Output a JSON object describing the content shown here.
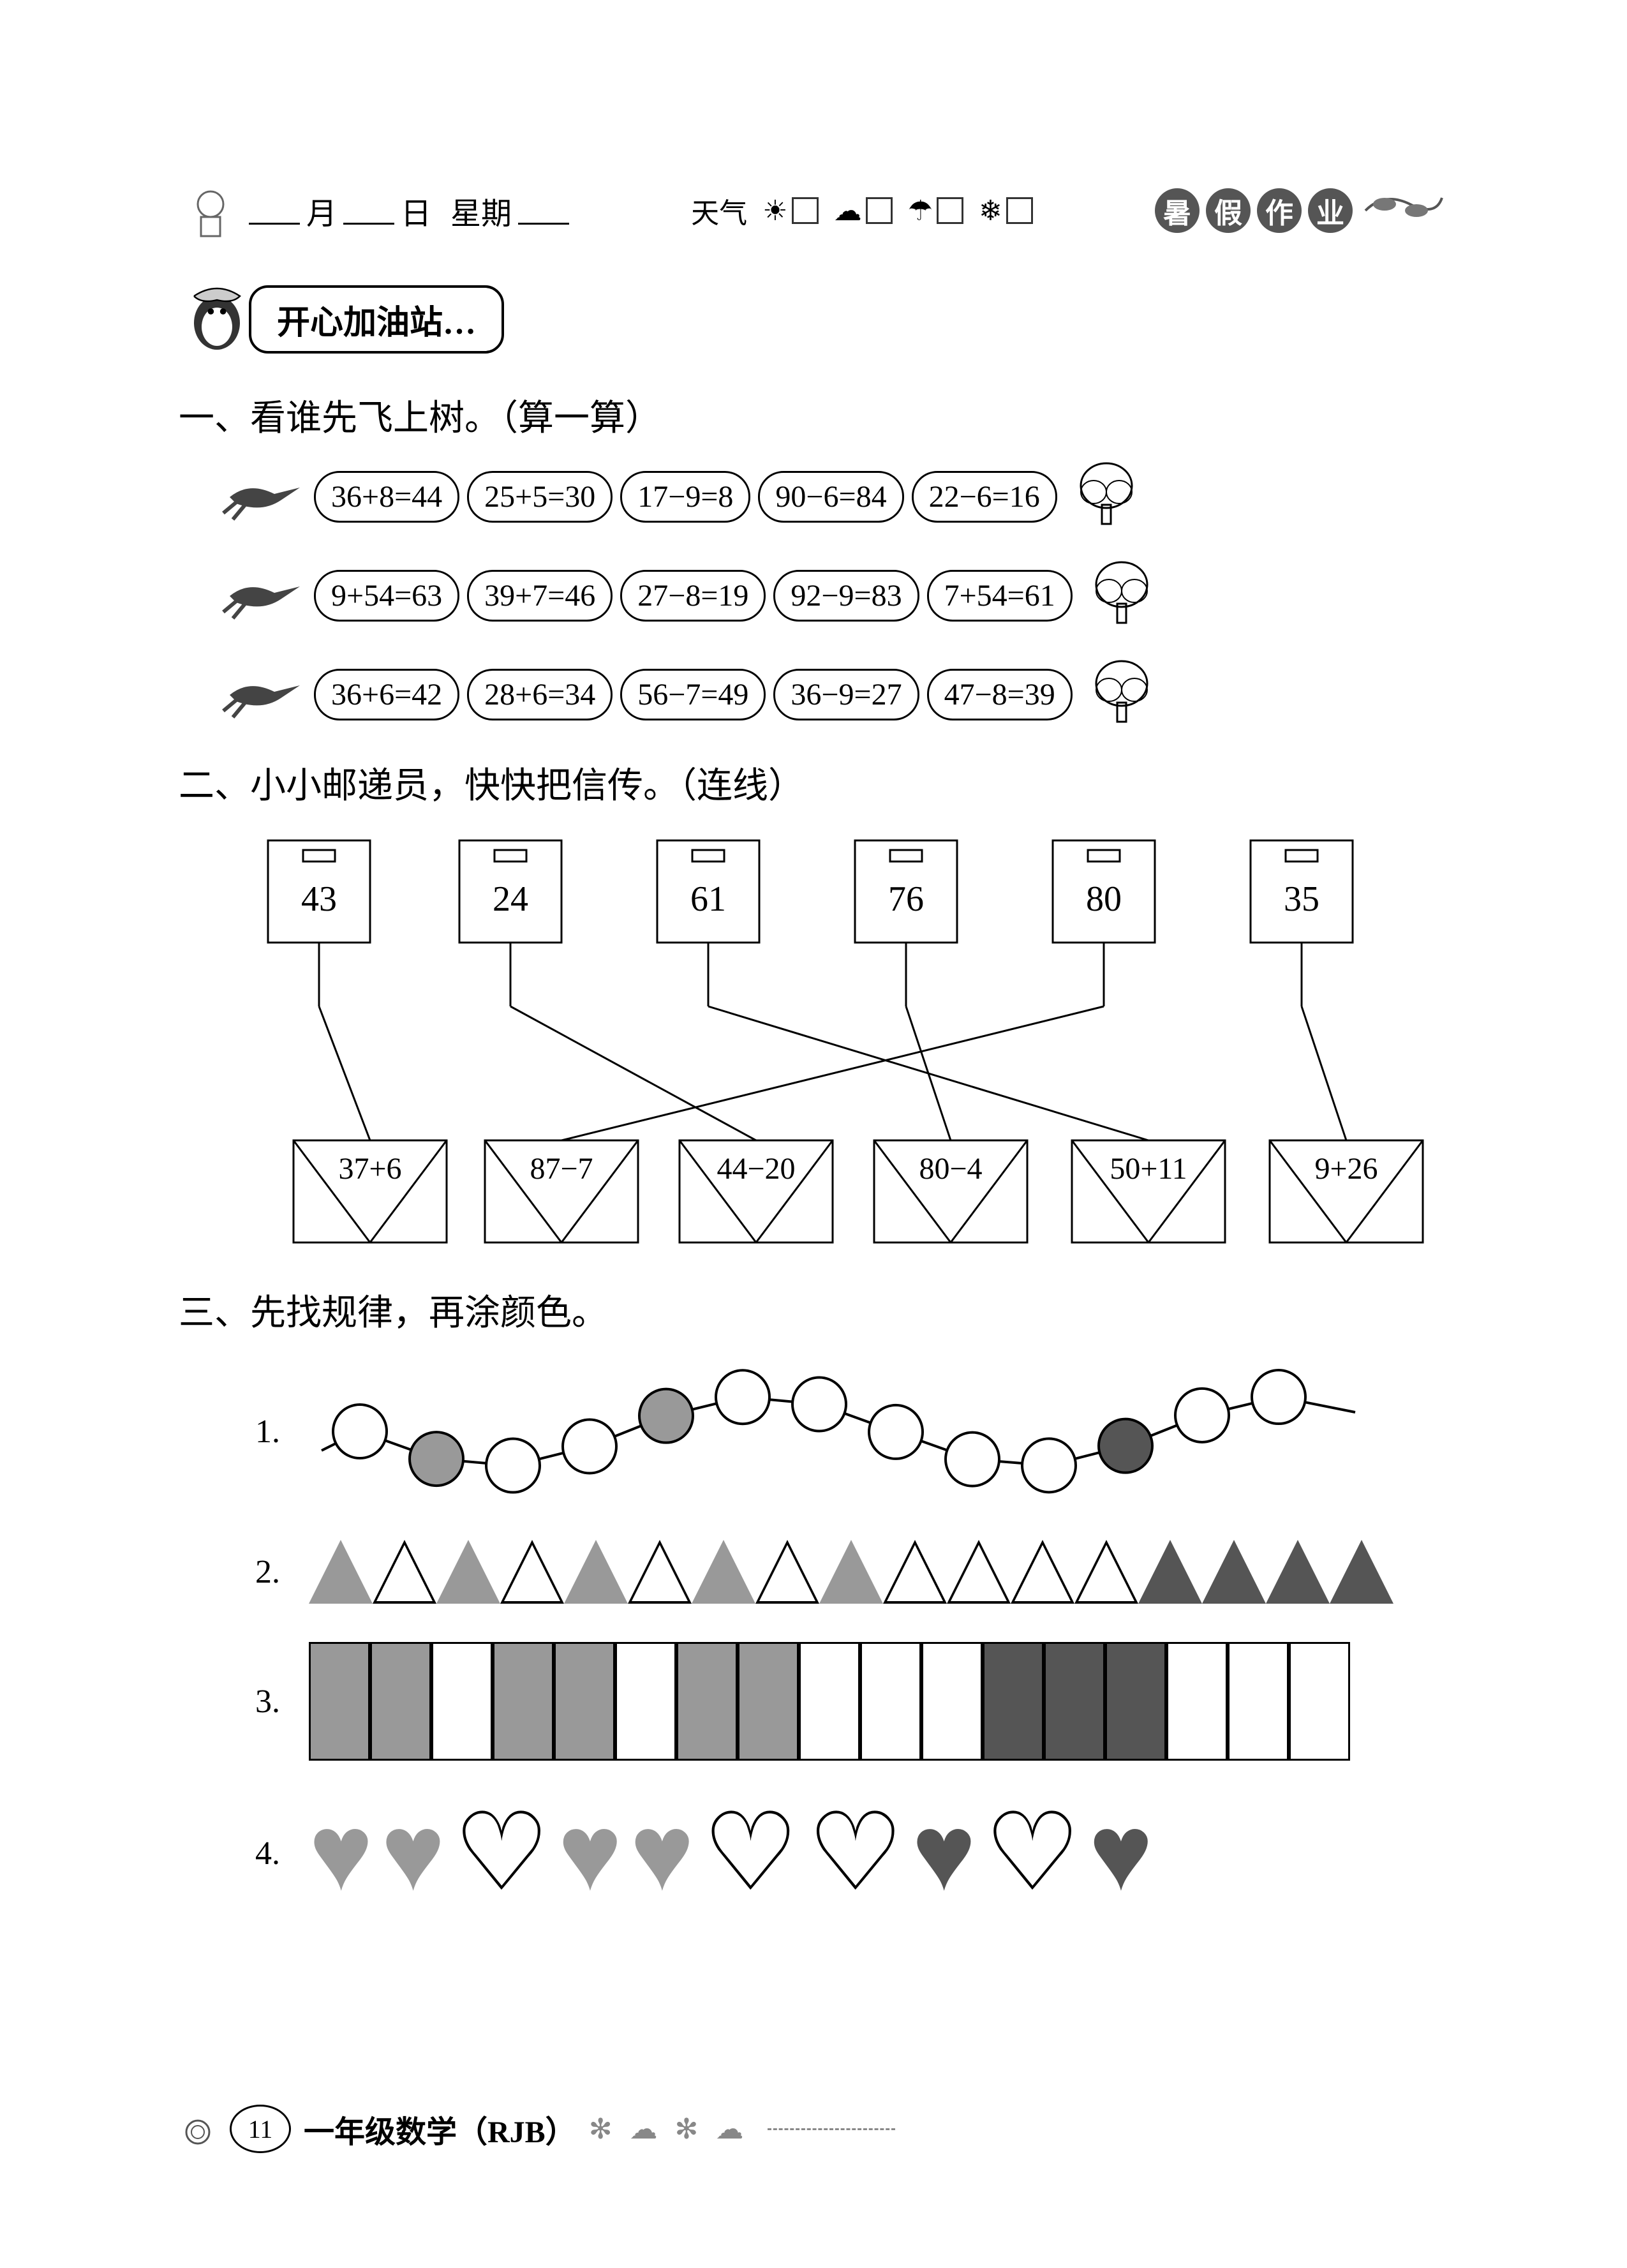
{
  "header": {
    "month": "月",
    "day": "日",
    "weekday": "星期",
    "weather_label": "天气",
    "title_chars": [
      "暑",
      "假",
      "作",
      "业"
    ]
  },
  "banner": {
    "text": "开心加油站…"
  },
  "section1": {
    "title": "一、看谁先飞上树。（算一算）",
    "rows": [
      [
        "36+8=44",
        "25+5=30",
        "17−9=8",
        "90−6=84",
        "22−6=16"
      ],
      [
        "9+54=63",
        "39+7=46",
        "27−8=19",
        "92−9=83",
        "7+54=61"
      ],
      [
        "36+6=42",
        "28+6=34",
        "56−7=49",
        "36−9=27",
        "47−8=39"
      ]
    ]
  },
  "section2": {
    "title": "二、小小邮递员，快快把信传。（连线）",
    "mailboxes": [
      "43",
      "24",
      "61",
      "76",
      "80",
      "35"
    ],
    "envelopes": [
      "37+6",
      "87−7",
      "44−20",
      "80−4",
      "50+11",
      "9+26"
    ],
    "matches": [
      [
        0,
        0
      ],
      [
        1,
        2
      ],
      [
        2,
        4
      ],
      [
        3,
        3
      ],
      [
        4,
        1
      ],
      [
        5,
        5
      ]
    ],
    "mailbox_x": [
      180,
      480,
      790,
      1100,
      1410,
      1720
    ],
    "envelope_x": [
      140,
      440,
      745,
      1050,
      1360,
      1670
    ],
    "line_color": "#000"
  },
  "section3": {
    "title": "三、先找规律，再涂颜色。",
    "pattern1": {
      "label": "1.",
      "colors": [
        "#fff",
        "#999",
        "#fff",
        "#fff",
        "#999",
        "#fff",
        "#fff",
        "#fff",
        "#fff",
        "#fff",
        "#555",
        "#fff",
        "#fff"
      ],
      "stroke": "#000"
    },
    "pattern2": {
      "label": "2.",
      "colors": [
        "#999",
        "#fff",
        "#999",
        "#fff",
        "#999",
        "#fff",
        "#999",
        "#fff",
        "#999",
        "#fff",
        "#fff",
        "#fff",
        "#fff",
        "#555",
        "#555",
        "#555",
        "#555"
      ],
      "stroke": "#000"
    },
    "pattern3": {
      "label": "3.",
      "colors": [
        "#999",
        "#999",
        "#fff",
        "#999",
        "#999",
        "#fff",
        "#999",
        "#999",
        "#fff",
        "#fff",
        "#fff",
        "#555",
        "#555",
        "#555",
        "#fff",
        "#fff",
        "#fff"
      ]
    },
    "pattern4": {
      "label": "4.",
      "items": [
        {
          "fill": "#999",
          "type": "solid"
        },
        {
          "fill": "#999",
          "type": "solid"
        },
        {
          "fill": "#fff",
          "type": "outline"
        },
        {
          "fill": "#999",
          "type": "solid"
        },
        {
          "fill": "#999",
          "type": "solid"
        },
        {
          "fill": "#fff",
          "type": "outline"
        },
        {
          "fill": "#fff",
          "type": "outline"
        },
        {
          "fill": "#555",
          "type": "solid"
        },
        {
          "fill": "#fff",
          "type": "outline"
        },
        {
          "fill": "#555",
          "type": "solid"
        }
      ]
    }
  },
  "footer": {
    "page": "11",
    "text": "一年级数学（RJB）",
    "deco": "✻ ☁ ✻ ☁"
  }
}
